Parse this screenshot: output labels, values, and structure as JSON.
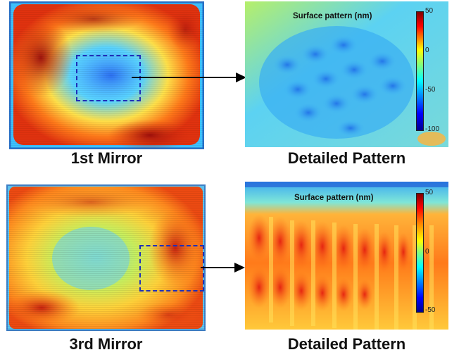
{
  "panels": {
    "mirror1": {
      "caption": "1st Mirror"
    },
    "detail1": {
      "caption": "Detailed Pattern",
      "colorbar": {
        "title": "Surface pattern (nm)",
        "ticks": [
          "50",
          "0",
          "-50",
          "-100"
        ],
        "range": [
          -100,
          50
        ]
      }
    },
    "mirror3": {
      "caption": "3rd Mirror"
    },
    "detail3": {
      "caption": "Detailed Pattern",
      "colorbar": {
        "title": "Surface pattern (nm)",
        "ticks": [
          "50",
          "0",
          "-50"
        ],
        "range": [
          -50,
          50
        ]
      }
    }
  },
  "colors": {
    "selection_box": "#1f2fb8",
    "arrow": "#000000",
    "jet_low": "#00008f",
    "jet_mid": "#7fff7f",
    "jet_high": "#800000"
  }
}
